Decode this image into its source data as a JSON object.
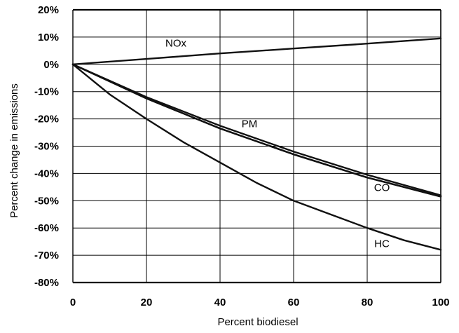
{
  "chart_data": {
    "type": "line",
    "title": "",
    "xlabel": "Percent biodiesel",
    "ylabel": "Percent change in emissions",
    "xlim": [
      0,
      100
    ],
    "ylim": [
      -80,
      20
    ],
    "x_ticks": [
      0,
      20,
      40,
      60,
      80,
      100
    ],
    "x_tick_labels": [
      "0",
      "20",
      "40",
      "60",
      "80",
      "100"
    ],
    "y_ticks": [
      20,
      10,
      0,
      -10,
      -20,
      -30,
      -40,
      -50,
      -60,
      -70,
      -80
    ],
    "y_tick_labels": [
      "20%",
      "10%",
      "0%",
      "-10%",
      "-20%",
      "-30%",
      "-40%",
      "-50%",
      "-60%",
      "-70%",
      "-80%"
    ],
    "grid": true,
    "legend": "none",
    "line_color": "#111111",
    "series": [
      {
        "name": "NOx",
        "label": {
          "x": 28,
          "y": 6.5
        },
        "x": [
          0,
          20,
          40,
          60,
          80,
          100
        ],
        "y": [
          0,
          2,
          4,
          5.8,
          7.6,
          9.5
        ]
      },
      {
        "name": "PM",
        "label": {
          "x": 48,
          "y": -23
        },
        "x": [
          0,
          20,
          40,
          60,
          80,
          100
        ],
        "y": [
          0,
          -12,
          -22.5,
          -32,
          -40.5,
          -48
        ]
      },
      {
        "name": "",
        "x": [
          0,
          20,
          40,
          60,
          80,
          100
        ],
        "y": [
          0,
          -12.5,
          -23.5,
          -33,
          -41.5,
          -48.5
        ]
      },
      {
        "name": "CO",
        "label": {
          "x": 84,
          "y": -46.5
        },
        "x": [
          0,
          20,
          40,
          60,
          80,
          100
        ],
        "y": [
          0,
          -12.5,
          -23.5,
          -33,
          -41.5,
          -48.5
        ]
      },
      {
        "name": "HC",
        "label": {
          "x": 84,
          "y": -67
        },
        "x": [
          0,
          10,
          20,
          30,
          40,
          50,
          60,
          70,
          80,
          90,
          100
        ],
        "y": [
          0,
          -11,
          -20,
          -28.5,
          -36,
          -43.5,
          -50,
          -55,
          -60,
          -64.5,
          -68
        ]
      }
    ]
  }
}
